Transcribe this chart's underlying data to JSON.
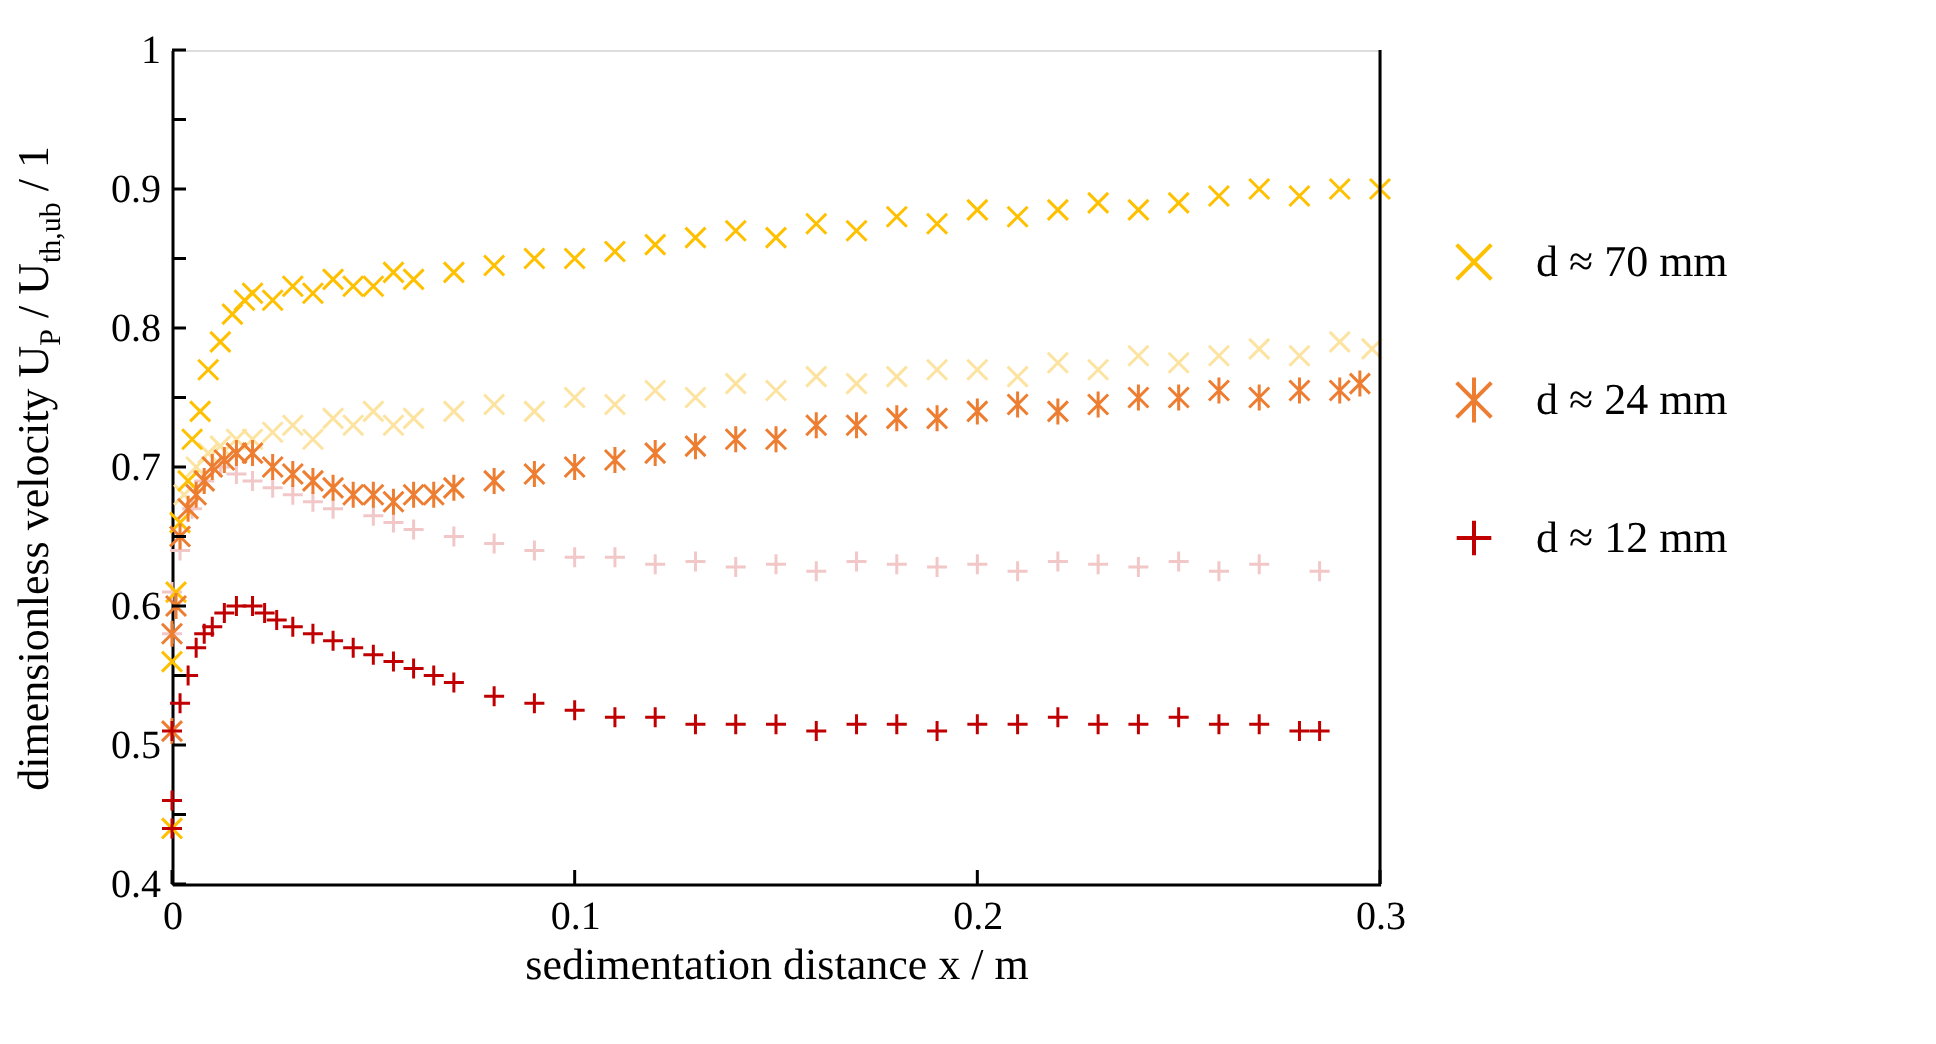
{
  "chart_data": {
    "type": "scatter",
    "xlabel": "sedimentation distance x / m",
    "ylabel": "dimensionless velocity U$_{P}$ / U$_{th,ub}$ / 1",
    "xlim": [
      0,
      0.3
    ],
    "xticks": [
      0,
      0.1,
      0.2,
      0.3
    ],
    "ylim": [
      0.4,
      1
    ],
    "yticks": [
      0.4,
      {
        "value": 0.45,
        "label": null
      },
      0.5,
      {
        "value": 0.55,
        "label": null
      },
      0.6,
      {
        "value": 0.65,
        "label": null
      },
      0.7,
      {
        "value": 0.75,
        "label": null
      },
      0.8,
      {
        "value": 0.85,
        "label": null
      },
      0.9,
      {
        "value": 0.95,
        "label": null
      },
      1
    ],
    "grid": false,
    "legend": "right",
    "series": [
      {
        "color": "#fde3a0",
        "marker": "x",
        "x": [
          0.003,
          0.006,
          0.009,
          0.012,
          0.016,
          0.02,
          0.025,
          0.03,
          0.035,
          0.04,
          0.045,
          0.05,
          0.055,
          0.06,
          0.07,
          0.08,
          0.09,
          0.1,
          0.11,
          0.12,
          0.13,
          0.14,
          0.15,
          0.16,
          0.17,
          0.18,
          0.19,
          0.2,
          0.21,
          0.22,
          0.23,
          0.24,
          0.25,
          0.26,
          0.27,
          0.28,
          0.29,
          0.298
        ],
        "values": [
          0.68,
          0.7,
          0.71,
          0.715,
          0.72,
          0.72,
          0.725,
          0.73,
          0.72,
          0.735,
          0.73,
          0.74,
          0.73,
          0.735,
          0.74,
          0.745,
          0.74,
          0.75,
          0.745,
          0.755,
          0.75,
          0.76,
          0.755,
          0.765,
          0.76,
          0.765,
          0.77,
          0.77,
          0.765,
          0.775,
          0.77,
          0.78,
          0.775,
          0.78,
          0.785,
          0.78,
          0.79,
          0.785
        ]
      },
      {
        "color": "#f2c7c7",
        "marker": "cross",
        "x": [
          0,
          0,
          0.002,
          0.005,
          0.008,
          0.012,
          0.016,
          0.02,
          0.025,
          0.03,
          0.035,
          0.04,
          0.05,
          0.055,
          0.06,
          0.07,
          0.08,
          0.09,
          0.1,
          0.11,
          0.12,
          0.13,
          0.14,
          0.15,
          0.16,
          0.17,
          0.18,
          0.19,
          0.2,
          0.21,
          0.22,
          0.23,
          0.24,
          0.25,
          0.26,
          0.27,
          0.285
        ],
        "values": [
          0.58,
          0.61,
          0.64,
          0.67,
          0.69,
          0.7,
          0.695,
          0.69,
          0.685,
          0.68,
          0.675,
          0.67,
          0.665,
          0.66,
          0.655,
          0.65,
          0.645,
          0.64,
          0.635,
          0.635,
          0.63,
          0.632,
          0.628,
          0.63,
          0.625,
          0.632,
          0.63,
          0.628,
          0.63,
          0.625,
          0.632,
          0.63,
          0.628,
          0.632,
          0.625,
          0.63,
          0.625
        ]
      },
      {
        "name": "d ≈ 70 mm",
        "color": "#ffc000",
        "marker": "x",
        "x": [
          0,
          0,
          0.001,
          0.002,
          0.004,
          0.005,
          0.007,
          0.009,
          0.012,
          0.015,
          0.018,
          0.02,
          0.025,
          0.03,
          0.035,
          0.04,
          0.045,
          0.05,
          0.055,
          0.06,
          0.07,
          0.08,
          0.09,
          0.1,
          0.11,
          0.12,
          0.13,
          0.14,
          0.15,
          0.16,
          0.17,
          0.18,
          0.19,
          0.2,
          0.21,
          0.22,
          0.23,
          0.24,
          0.25,
          0.26,
          0.27,
          0.28,
          0.29,
          0.3
        ],
        "values": [
          0.44,
          0.56,
          0.61,
          0.66,
          0.69,
          0.72,
          0.74,
          0.77,
          0.79,
          0.81,
          0.82,
          0.825,
          0.82,
          0.83,
          0.825,
          0.835,
          0.83,
          0.83,
          0.84,
          0.835,
          0.84,
          0.845,
          0.85,
          0.85,
          0.855,
          0.86,
          0.865,
          0.87,
          0.865,
          0.875,
          0.87,
          0.88,
          0.875,
          0.885,
          0.88,
          0.885,
          0.89,
          0.885,
          0.89,
          0.895,
          0.9,
          0.895,
          0.9,
          0.9
        ]
      },
      {
        "name": "d ≈ 24 mm",
        "color": "#ed7d31",
        "x": [
          0,
          0,
          0.001,
          0.002,
          0.004,
          0.006,
          0.008,
          0.01,
          0.013,
          0.016,
          0.02,
          0.025,
          0.03,
          0.035,
          0.04,
          0.045,
          0.05,
          0.055,
          0.06,
          0.065,
          0.07,
          0.08,
          0.09,
          0.1,
          0.11,
          0.12,
          0.13,
          0.14,
          0.15,
          0.16,
          0.17,
          0.18,
          0.19,
          0.2,
          0.21,
          0.22,
          0.23,
          0.24,
          0.25,
          0.26,
          0.27,
          0.28,
          0.29,
          0.295
        ],
        "values": [
          0.51,
          0.58,
          0.6,
          0.65,
          0.67,
          0.68,
          0.69,
          0.7,
          0.705,
          0.71,
          0.71,
          0.7,
          0.695,
          0.69,
          0.685,
          0.68,
          0.68,
          0.675,
          0.68,
          0.68,
          0.685,
          0.69,
          0.695,
          0.7,
          0.705,
          0.71,
          0.715,
          0.72,
          0.72,
          0.73,
          0.73,
          0.735,
          0.735,
          0.74,
          0.745,
          0.74,
          0.745,
          0.75,
          0.75,
          0.755,
          0.75,
          0.755,
          0.755,
          0.76
        ]
      },
      {
        "name": "d ≈ 12 mm",
        "color": "#c00000",
        "marker": "cross",
        "x": [
          0,
          0,
          0,
          0.002,
          0.004,
          0.006,
          0.008,
          0.01,
          0.013,
          0.016,
          0.02,
          0.023,
          0.026,
          0.03,
          0.035,
          0.04,
          0.045,
          0.05,
          0.055,
          0.06,
          0.065,
          0.07,
          0.08,
          0.09,
          0.1,
          0.11,
          0.12,
          0.13,
          0.14,
          0.15,
          0.16,
          0.17,
          0.18,
          0.19,
          0.2,
          0.21,
          0.22,
          0.23,
          0.24,
          0.25,
          0.26,
          0.27,
          0.28,
          0.285
        ],
        "values": [
          0.44,
          0.46,
          0.51,
          0.53,
          0.55,
          0.57,
          0.58,
          0.585,
          0.595,
          0.6,
          0.6,
          0.595,
          0.59,
          0.585,
          0.58,
          0.575,
          0.57,
          0.565,
          0.56,
          0.555,
          0.55,
          0.545,
          0.535,
          0.53,
          0.525,
          0.52,
          0.52,
          0.515,
          0.515,
          0.515,
          0.51,
          0.515,
          0.515,
          0.51,
          0.515,
          0.515,
          0.52,
          0.515,
          0.515,
          0.52,
          0.515,
          0.515,
          0.51,
          0.51
        ]
      }
    ]
  }
}
